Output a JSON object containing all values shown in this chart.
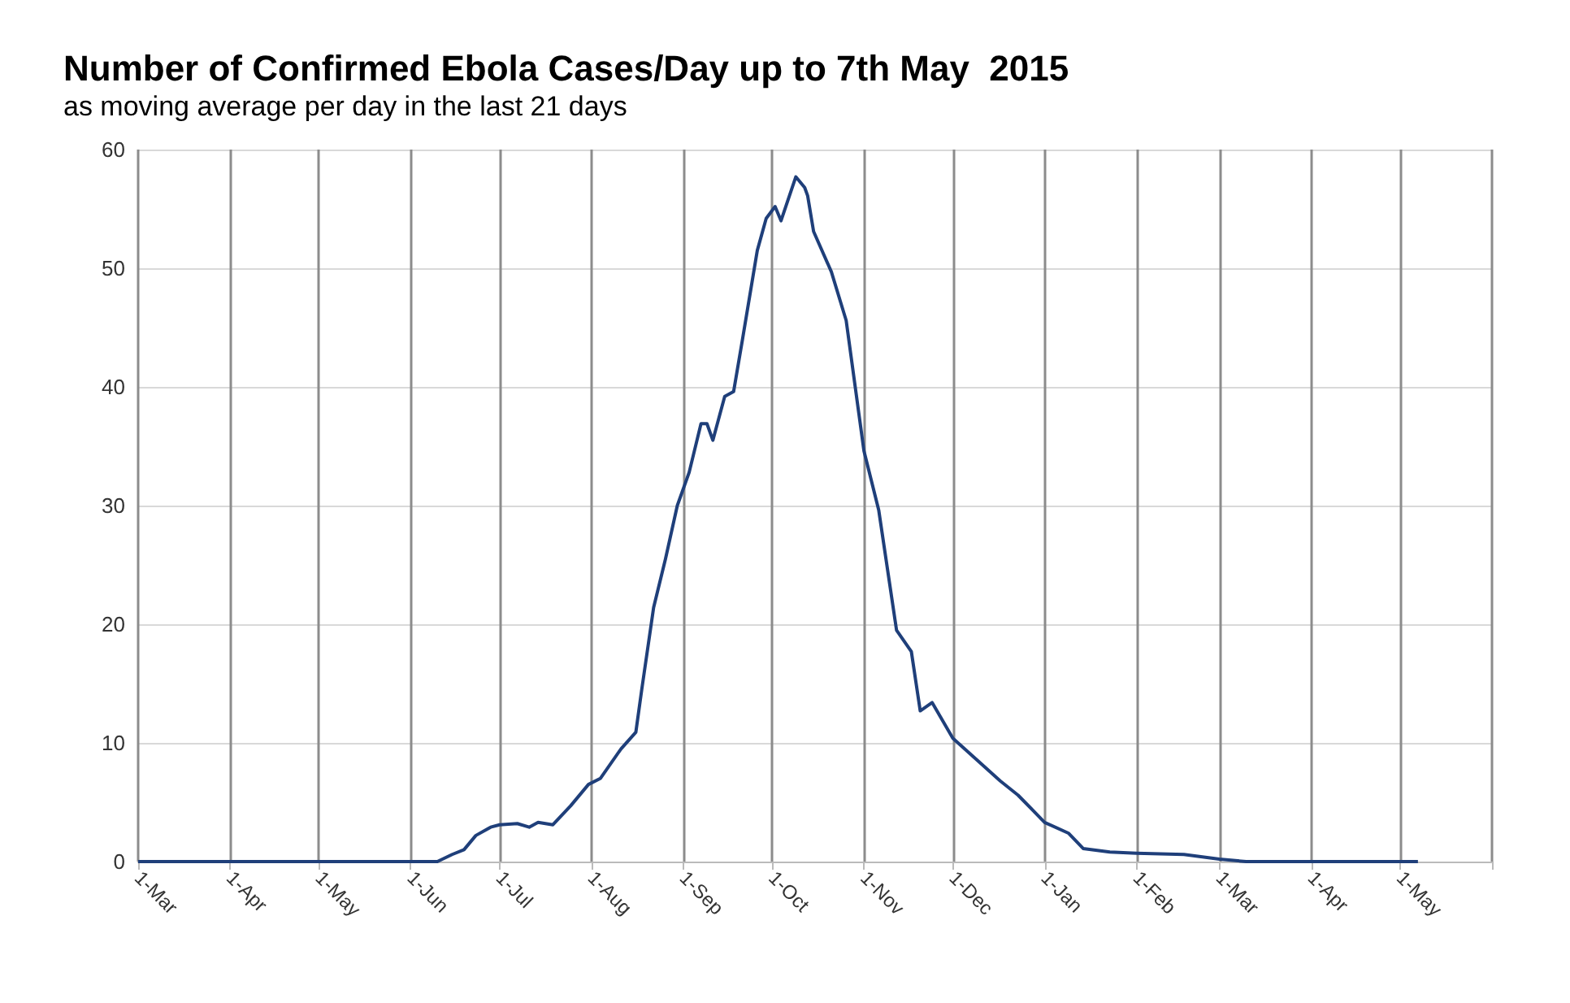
{
  "chart_data": {
    "type": "line",
    "title": "Number of Confirmed Ebola Cases/Day up to 7th May  2015",
    "subtitle": "as moving average per day in the last 21 days",
    "x": [
      "2014-03-01",
      "2014-06-10",
      "2014-06-15",
      "2014-06-19",
      "2014-06-23",
      "2014-06-28",
      "2014-07-01",
      "2014-07-07",
      "2014-07-11",
      "2014-07-14",
      "2014-07-19",
      "2014-07-25",
      "2014-07-31",
      "2014-08-04",
      "2014-08-11",
      "2014-08-16",
      "2014-08-18",
      "2014-08-22",
      "2014-08-26",
      "2014-08-30",
      "2014-09-03",
      "2014-09-07",
      "2014-09-09",
      "2014-09-11",
      "2014-09-15",
      "2014-09-18",
      "2014-09-21",
      "2014-09-26",
      "2014-09-29",
      "2014-10-02",
      "2014-10-04",
      "2014-10-09",
      "2014-10-12",
      "2014-10-13",
      "2014-10-15",
      "2014-10-21",
      "2014-10-26",
      "2014-11-01",
      "2014-11-06",
      "2014-11-12",
      "2014-11-17",
      "2014-11-20",
      "2014-11-24",
      "2014-12-01",
      "2014-12-09",
      "2014-12-17",
      "2014-12-23",
      "2015-01-01",
      "2015-01-09",
      "2015-01-14",
      "2015-01-23",
      "2015-02-01",
      "2015-02-17",
      "2015-03-01",
      "2015-03-10",
      "2015-05-07"
    ],
    "series": [
      {
        "color": "#1f3f7a",
        "values": [
          0,
          0,
          0.6,
          1.0,
          2.2,
          2.9,
          3.1,
          3.2,
          2.9,
          3.3,
          3.1,
          4.7,
          6.5,
          7.0,
          9.5,
          10.9,
          14.5,
          21.4,
          25.5,
          30,
          32.8,
          36.9,
          36.9,
          35.5,
          39.2,
          39.6,
          44,
          51.5,
          54.2,
          55.2,
          54,
          57.7,
          56.8,
          56.1,
          53.1,
          49.7,
          45.6,
          34.6,
          29.6,
          19.5,
          17.7,
          12.7,
          13.4,
          10.4,
          8.6,
          6.8,
          5.6,
          3.3,
          2.4,
          1.1,
          0.8,
          0.7,
          0.6,
          0.2,
          0,
          0
        ]
      }
    ],
    "xlim": [
      "2014-03-01",
      "2015-06-01"
    ],
    "xticks": [
      {
        "value": "2014-03-01",
        "label": "1-Mar"
      },
      {
        "value": "2014-04-01",
        "label": "1-Apr"
      },
      {
        "value": "2014-05-01",
        "label": "1-May"
      },
      {
        "value": "2014-06-01",
        "label": "1-Jun"
      },
      {
        "value": "2014-07-01",
        "label": "1-Jul"
      },
      {
        "value": "2014-08-01",
        "label": "1-Aug"
      },
      {
        "value": "2014-09-01",
        "label": "1-Sep"
      },
      {
        "value": "2014-10-01",
        "label": "1-Oct"
      },
      {
        "value": "2014-11-01",
        "label": "1-Nov"
      },
      {
        "value": "2014-12-01",
        "label": "1-Dec"
      },
      {
        "value": "2015-01-01",
        "label": "1-Jan"
      },
      {
        "value": "2015-02-01",
        "label": "1-Feb"
      },
      {
        "value": "2015-03-01",
        "label": "1-Mar"
      },
      {
        "value": "2015-04-01",
        "label": "1-Apr"
      },
      {
        "value": "2015-05-01",
        "label": "1-May"
      },
      {
        "value": "2015-06-01",
        "label": null
      }
    ],
    "ylim": [
      0,
      60
    ],
    "yticks": [
      0,
      10,
      20,
      30,
      40,
      50,
      60
    ],
    "grid": true,
    "marker": "none",
    "line_style": "solid"
  }
}
